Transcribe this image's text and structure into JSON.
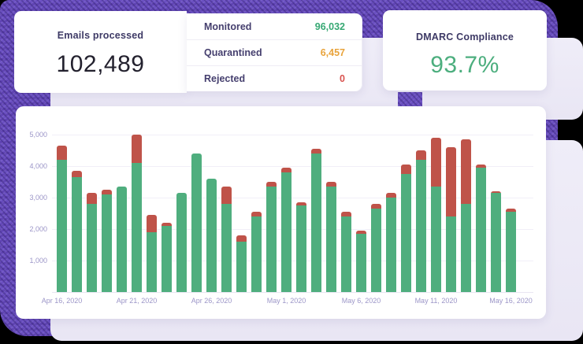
{
  "background": {
    "purple_texture": "#6b50c2",
    "lavender_panel": "#ebe8f5",
    "outer": "#000000",
    "card": "#ffffff"
  },
  "cards": {
    "emails": {
      "title": "Emails processed",
      "value": "102,489"
    },
    "stats": {
      "rows": [
        {
          "label": "Monitored",
          "value": "96,032",
          "color": "#36a873"
        },
        {
          "label": "Quarantined",
          "value": "6,457",
          "color": "#e8a33b"
        },
        {
          "label": "Rejected",
          "value": "0",
          "color": "#d9534f"
        }
      ]
    },
    "dmarc": {
      "title": "DMARC Compliance",
      "value": "93.7%",
      "value_color": "#4cae7e"
    }
  },
  "chart_data": {
    "type": "bar",
    "stacked": true,
    "title": "",
    "xlabel": "",
    "ylabel": "",
    "ylim": [
      0,
      5000
    ],
    "grid": true,
    "legend": "none",
    "categories": [
      "Apr 16, 2020",
      "Apr 17, 2020",
      "Apr 18, 2020",
      "Apr 19, 2020",
      "Apr 20, 2020",
      "Apr 21, 2020",
      "Apr 22, 2020",
      "Apr 23, 2020",
      "Apr 24, 2020",
      "Apr 25, 2020",
      "Apr 26, 2020",
      "Apr 27, 2020",
      "Apr 28, 2020",
      "Apr 29, 2020",
      "Apr 30, 2020",
      "May 1, 2020",
      "May 2, 2020",
      "May 3, 2020",
      "May 4, 2020",
      "May 5, 2020",
      "May 6, 2020",
      "May 7, 2020",
      "May 8, 2020",
      "May 9, 2020",
      "May 10, 2020",
      "May 11, 2020",
      "May 12, 2020",
      "May 13, 2020",
      "May 14, 2020",
      "May 15, 2020",
      "May 16, 2020"
    ],
    "series": [
      {
        "name": "green-monitored",
        "color": "#4fae7e",
        "values": [
          4200,
          3650,
          2800,
          3100,
          3350,
          4100,
          1900,
          2100,
          3150,
          4400,
          3600,
          2800,
          1600,
          2400,
          3350,
          3800,
          2750,
          4400,
          3350,
          2400,
          1850,
          2650,
          3000,
          3750,
          4200,
          3350,
          2400,
          2800,
          3950,
          3150,
          2550
        ]
      },
      {
        "name": "red-quarantined",
        "color": "#bf5349",
        "values": [
          450,
          200,
          350,
          150,
          0,
          900,
          550,
          100,
          0,
          0,
          0,
          550,
          200,
          150,
          150,
          150,
          100,
          150,
          150,
          150,
          100,
          150,
          150,
          300,
          300,
          1550,
          2200,
          2050,
          100,
          50,
          100
        ]
      }
    ],
    "y_ticks": [
      {
        "value": 1000,
        "label": "1,000"
      },
      {
        "value": 2000,
        "label": "2,000"
      },
      {
        "value": 3000,
        "label": "3,000"
      },
      {
        "value": 4000,
        "label": "4,000"
      },
      {
        "value": 5000,
        "label": "5,000"
      }
    ],
    "x_ticks": [
      {
        "index": 0,
        "label": "Apr 16, 2020"
      },
      {
        "index": 5,
        "label": "Apr 21, 2020"
      },
      {
        "index": 10,
        "label": "Apr 26, 2020"
      },
      {
        "index": 15,
        "label": "May 1, 2020"
      },
      {
        "index": 20,
        "label": "May 6, 2020"
      },
      {
        "index": 25,
        "label": "May 11, 2020"
      },
      {
        "index": 30,
        "label": "May 16, 2020"
      }
    ]
  }
}
